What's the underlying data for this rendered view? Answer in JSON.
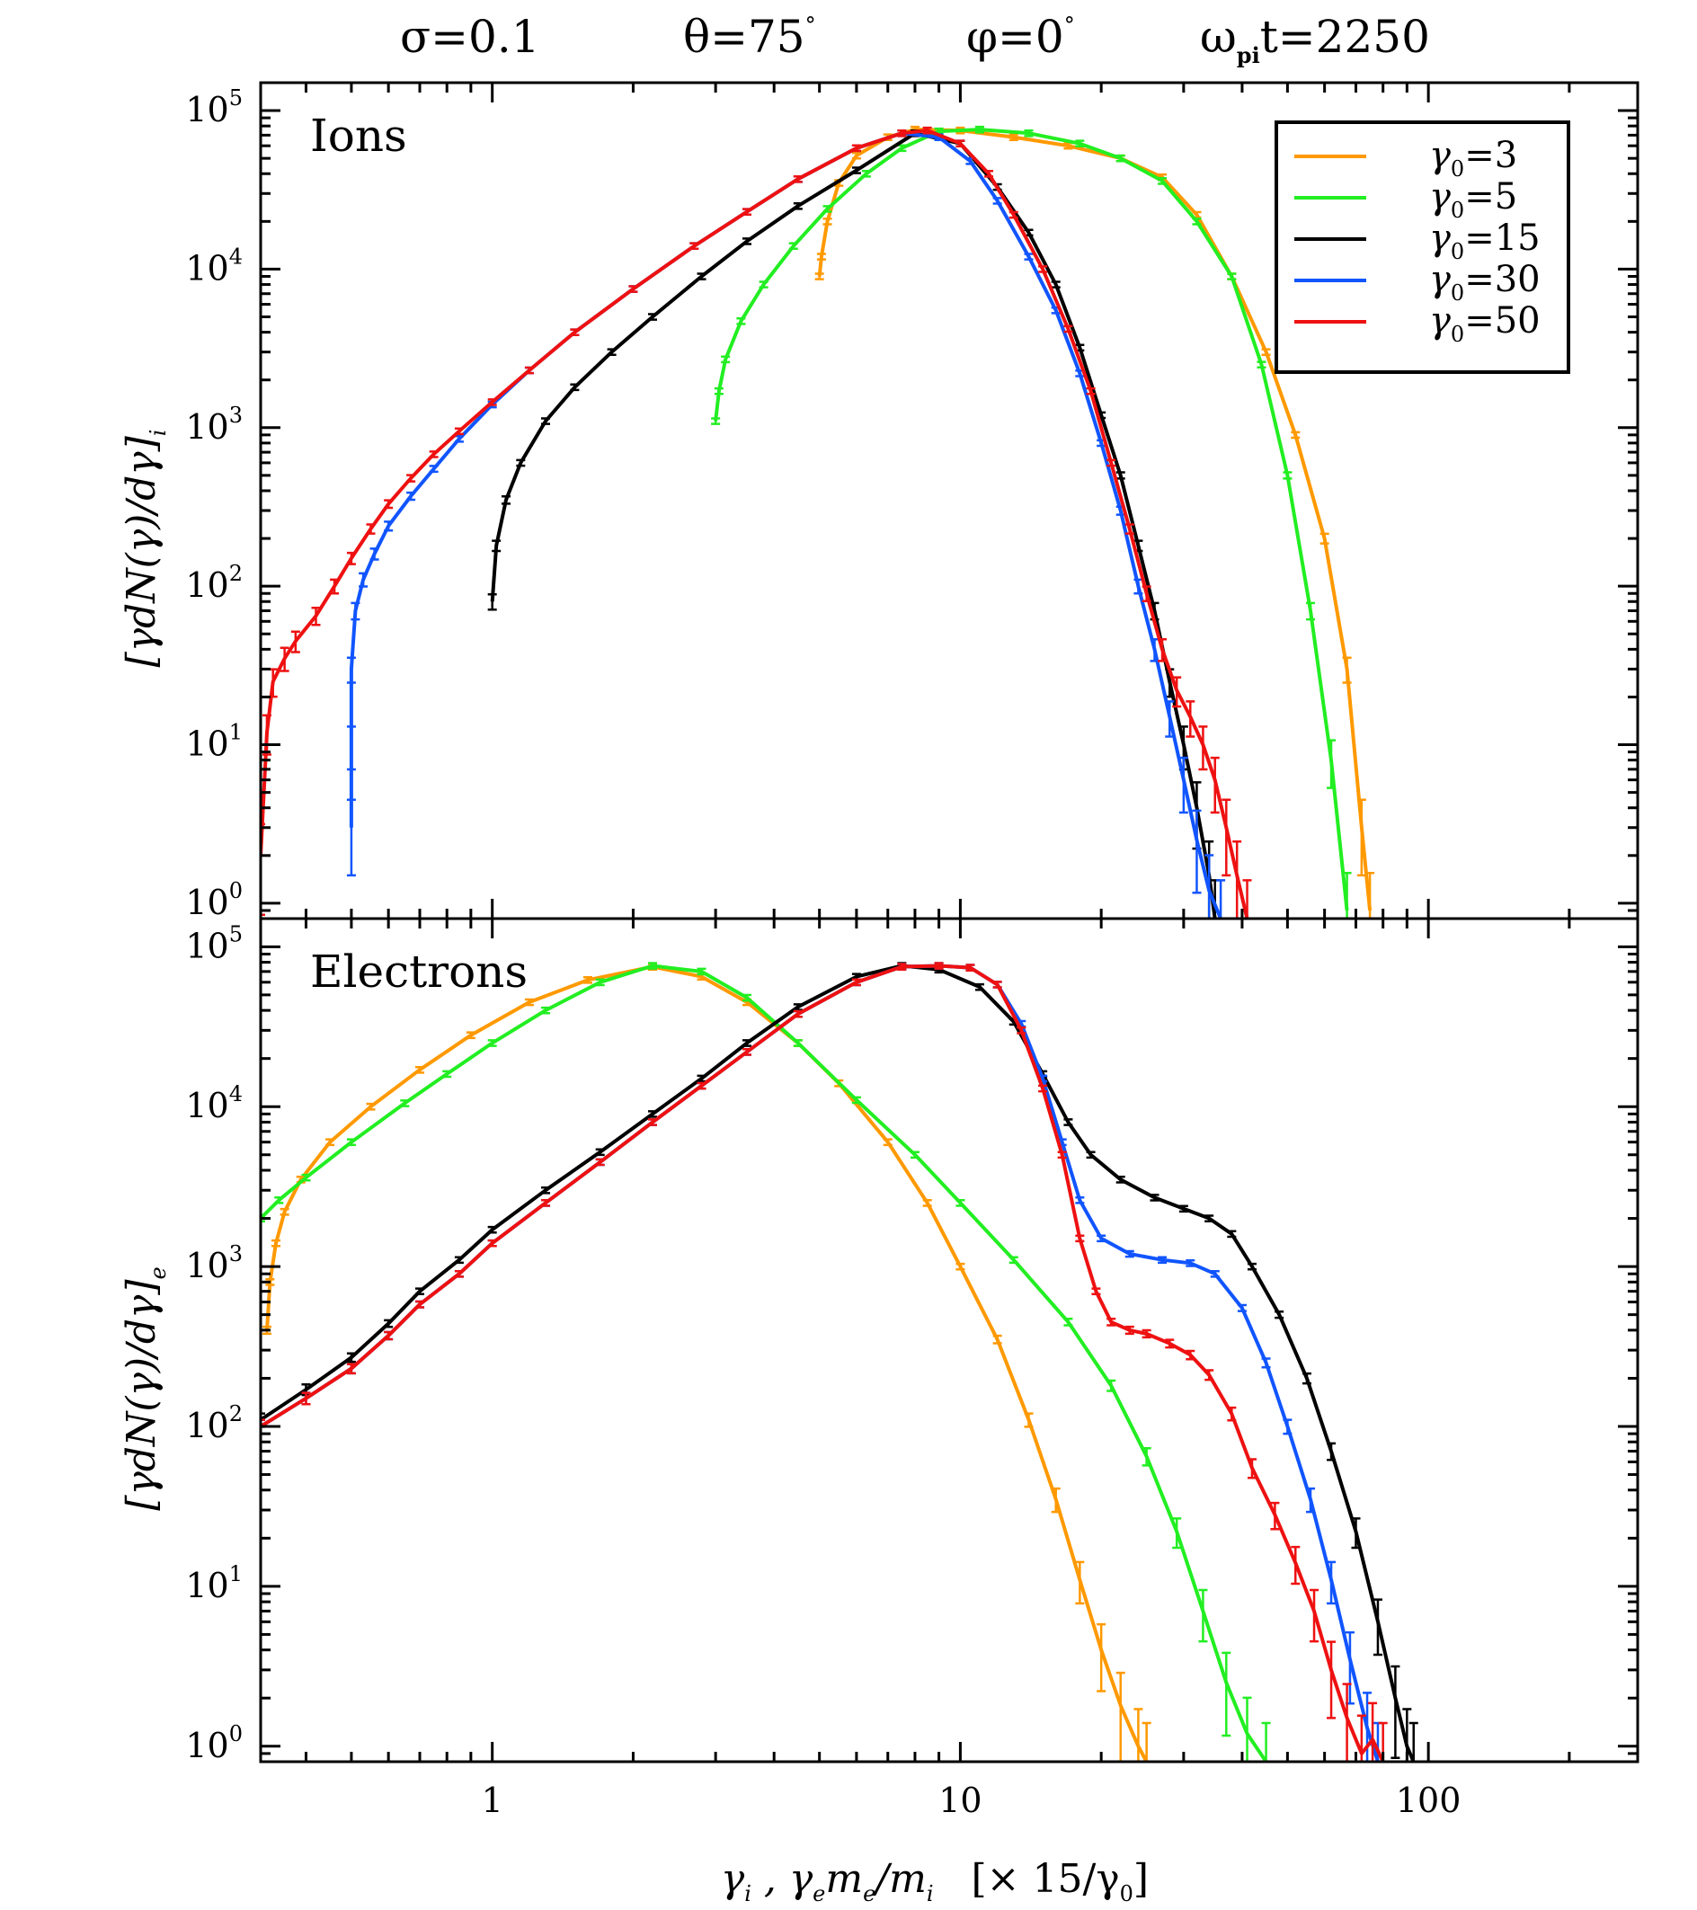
{
  "chart_data": [
    {
      "type": "line",
      "panel": "top",
      "label": "Ions",
      "xscale": "log",
      "yscale": "log",
      "xlim": [
        0.32,
        280
      ],
      "ylim": [
        0.8,
        150000
      ],
      "yticks": [
        {
          "base": "10",
          "exp": "0",
          "value": 1
        },
        {
          "base": "10",
          "exp": "1",
          "value": 10
        },
        {
          "base": "10",
          "exp": "2",
          "value": 100
        },
        {
          "base": "10",
          "exp": "3",
          "value": 1000
        },
        {
          "base": "10",
          "exp": "4",
          "value": 10000
        },
        {
          "base": "10",
          "exp": "5",
          "value": 100000
        }
      ],
      "ylabel": "[γdN(γ)/dγ]",
      "ylabel_sub": "i",
      "series": [
        {
          "name": "γ0=3",
          "color": "#ff9900",
          "x": [
            5,
            5.05,
            5.2,
            5.5,
            6,
            7,
            8,
            10,
            13,
            17,
            22,
            27,
            32,
            38,
            45,
            52,
            60,
            67,
            72,
            75
          ],
          "y": [
            9000,
            12000,
            20000,
            35000,
            52000,
            68000,
            76000,
            75000,
            68000,
            60000,
            50000,
            38000,
            22000,
            9000,
            3000,
            900,
            200,
            30,
            3,
            0.9
          ]
        },
        {
          "name": "γ0=5",
          "color": "#22ee22",
          "x": [
            3,
            3.05,
            3.15,
            3.4,
            3.8,
            4.4,
            5.2,
            6.3,
            7.5,
            9,
            11,
            14,
            18,
            22,
            27,
            32,
            38,
            44,
            50,
            56,
            62,
            67
          ],
          "y": [
            1100,
            1700,
            2700,
            4700,
            8000,
            14000,
            24000,
            40000,
            58000,
            74000,
            76000,
            72000,
            62000,
            50000,
            36000,
            20000,
            9000,
            2500,
            500,
            70,
            8,
            0.9
          ]
        },
        {
          "name": "γ0=15",
          "color": "#000000",
          "x": [
            1,
            1.02,
            1.07,
            1.15,
            1.3,
            1.5,
            1.8,
            2.2,
            2.8,
            3.5,
            4.5,
            6,
            8,
            10,
            12,
            14,
            16,
            18,
            20,
            22,
            24,
            26,
            28,
            30,
            32,
            34,
            35
          ],
          "y": [
            80,
            180,
            350,
            600,
            1100,
            1800,
            3000,
            5000,
            9000,
            15000,
            25000,
            42000,
            72000,
            62000,
            33000,
            17000,
            8000,
            3200,
            1200,
            500,
            180,
            70,
            25,
            10,
            4,
            1.5,
            0.8
          ]
        },
        {
          "name": "γ0=30",
          "color": "#1155ff",
          "x": [
            0.5,
            0.5,
            0.5,
            0.51,
            0.53,
            0.56,
            0.6,
            0.67,
            0.75,
            0.85,
            1,
            1.2,
            1.5,
            2,
            2.7,
            3.5,
            4.5,
            6,
            7.5,
            9,
            10.5,
            12,
            14,
            16,
            18,
            20,
            22,
            24,
            26,
            28,
            30,
            32,
            34,
            36
          ],
          "y": [
            3,
            10,
            30,
            70,
            110,
            160,
            240,
            370,
            550,
            850,
            1400,
            2300,
            4000,
            7500,
            14000,
            23000,
            37000,
            58000,
            72000,
            68000,
            48000,
            27000,
            12000,
            5500,
            2200,
            800,
            300,
            100,
            40,
            15,
            6,
            2.5,
            1.2,
            0.8
          ]
        },
        {
          "name": "γ0=50",
          "color": "#ee1111",
          "x": [
            0.32,
            0.33,
            0.34,
            0.36,
            0.38,
            0.42,
            0.46,
            0.5,
            0.55,
            0.6,
            0.67,
            0.75,
            0.85,
            1,
            1.2,
            1.5,
            2,
            2.7,
            3.5,
            4.5,
            6,
            7.5,
            8.5,
            10,
            11.5,
            13,
            15,
            17,
            19,
            21,
            23,
            25,
            27,
            29,
            31,
            33,
            35,
            37,
            39,
            41
          ],
          "y": [
            2,
            12,
            25,
            35,
            45,
            65,
            100,
            150,
            230,
            330,
            480,
            680,
            950,
            1450,
            2300,
            4000,
            7500,
            14000,
            23000,
            37000,
            58000,
            72000,
            75000,
            62000,
            40000,
            22000,
            10000,
            4200,
            1700,
            600,
            230,
            90,
            40,
            22,
            15,
            10,
            6,
            3,
            1.5,
            0.8
          ]
        }
      ]
    },
    {
      "type": "line",
      "panel": "bottom",
      "label": "Electrons",
      "xscale": "log",
      "yscale": "log",
      "xlim": [
        0.32,
        280
      ],
      "ylim": [
        0.8,
        150000
      ],
      "xticks": [
        {
          "label": "1",
          "value": 1
        },
        {
          "label": "10",
          "value": 10
        },
        {
          "label": "100",
          "value": 100
        }
      ],
      "yticks": [
        {
          "base": "10",
          "exp": "0",
          "value": 1
        },
        {
          "base": "10",
          "exp": "1",
          "value": 10
        },
        {
          "base": "10",
          "exp": "2",
          "value": 100
        },
        {
          "base": "10",
          "exp": "3",
          "value": 1000
        },
        {
          "base": "10",
          "exp": "4",
          "value": 10000
        },
        {
          "base": "10",
          "exp": "5",
          "value": 100000
        }
      ],
      "ylabel": "[γdN(γ)/dγ]",
      "ylabel_sub": "e",
      "series": [
        {
          "name": "γ0=3",
          "color": "#ff9900",
          "x": [
            0.33,
            0.335,
            0.345,
            0.36,
            0.39,
            0.45,
            0.55,
            0.7,
            0.9,
            1.2,
            1.6,
            2.2,
            2.8,
            3.5,
            4.5,
            5.5,
            7,
            8.5,
            10,
            12,
            14,
            16,
            18,
            20,
            22,
            24,
            25
          ],
          "y": [
            400,
            800,
            1400,
            2200,
            3500,
            6000,
            10000,
            17000,
            28000,
            45000,
            62000,
            75000,
            65000,
            45000,
            25000,
            14000,
            6000,
            2500,
            1000,
            350,
            110,
            35,
            11,
            4,
            1.8,
            1,
            0.8
          ]
        },
        {
          "name": "γ0=5",
          "color": "#22ee22",
          "x": [
            0.32,
            0.35,
            0.4,
            0.5,
            0.65,
            0.8,
            1,
            1.3,
            1.7,
            2.2,
            2.8,
            3.5,
            4.5,
            6,
            8,
            10,
            13,
            17,
            21,
            25,
            29,
            33,
            37,
            41,
            45
          ],
          "y": [
            2000,
            2600,
            3600,
            6000,
            10500,
            16000,
            25000,
            40000,
            60000,
            76000,
            70000,
            48000,
            25000,
            11000,
            5000,
            2500,
            1100,
            450,
            180,
            65,
            22,
            7,
            2.5,
            1.2,
            0.8
          ]
        },
        {
          "name": "γ0=15",
          "color": "#000000",
          "x": [
            0.32,
            0.4,
            0.5,
            0.6,
            0.7,
            0.85,
            1,
            1.3,
            1.7,
            2.2,
            2.8,
            3.5,
            4.5,
            6,
            7.5,
            9,
            11,
            13,
            15,
            17,
            19,
            22,
            26,
            30,
            34,
            38,
            42,
            48,
            55,
            62,
            70,
            78,
            85,
            90,
            93
          ],
          "y": [
            110,
            170,
            270,
            440,
            700,
            1100,
            1700,
            3000,
            5200,
            9000,
            15000,
            25000,
            42000,
            65000,
            76000,
            72000,
            56000,
            34000,
            16000,
            8000,
            5000,
            3500,
            2700,
            2300,
            2000,
            1600,
            1000,
            500,
            200,
            70,
            22,
            6,
            2,
            1,
            0.8
          ]
        },
        {
          "name": "γ0=30",
          "color": "#1155ff",
          "x": [
            0.32,
            0.4,
            0.5,
            0.6,
            0.7,
            0.85,
            1,
            1.3,
            1.7,
            2.2,
            2.8,
            3.5,
            4.5,
            6,
            7.5,
            9,
            10.5,
            12,
            13.5,
            15,
            16.5,
            18,
            20,
            23,
            27,
            31,
            35,
            40,
            45,
            50,
            56,
            62,
            68,
            74,
            78
          ],
          "y": [
            100,
            150,
            230,
            370,
            580,
            900,
            1400,
            2500,
            4500,
            8000,
            13500,
            22000,
            38000,
            60000,
            75000,
            76000,
            74000,
            58000,
            33000,
            15000,
            6000,
            2600,
            1500,
            1200,
            1100,
            1050,
            900,
            550,
            250,
            100,
            35,
            11,
            3.5,
            1.3,
            0.8
          ]
        },
        {
          "name": "γ0=50",
          "color": "#ee1111",
          "x": [
            0.32,
            0.4,
            0.5,
            0.6,
            0.7,
            0.85,
            1,
            1.3,
            1.7,
            2.2,
            2.8,
            3.5,
            4.5,
            6,
            7.5,
            9,
            10.5,
            12,
            13.5,
            15,
            16.5,
            18,
            19.5,
            21,
            23,
            25,
            28,
            31,
            34,
            38,
            42,
            47,
            52,
            57,
            62,
            67,
            72,
            76,
            80
          ],
          "y": [
            100,
            150,
            230,
            370,
            580,
            900,
            1400,
            2500,
            4500,
            8000,
            13500,
            22000,
            38000,
            60000,
            75000,
            76000,
            74000,
            58000,
            30000,
            13000,
            5000,
            1500,
            700,
            450,
            400,
            380,
            330,
            280,
            210,
            120,
            55,
            28,
            14,
            7,
            3,
            1.5,
            0.9,
            1.1,
            0.8
          ]
        }
      ]
    }
  ],
  "title": {
    "sigma": "σ=0.1",
    "theta": "θ=75",
    "theta_deg": "°",
    "phi": "φ=0",
    "phi_deg": "°",
    "omega": "ω",
    "omega_sub": "pi",
    "omega_rest": "t=2250"
  },
  "xlabel": {
    "part1": "γ",
    "part1_sub": "i",
    "part2": " , γ",
    "part2_sub": "e",
    "part3": "m",
    "part3_sub": "e",
    "part4": "/m",
    "part4_sub": "i",
    "part5": "   [× 15/γ",
    "part5_sub": "0",
    "part6": "]"
  },
  "legend": [
    {
      "sym": "γ",
      "sub": "0",
      "rest": "=3",
      "color": "#ff9900"
    },
    {
      "sym": "γ",
      "sub": "0",
      "rest": "=5",
      "color": "#22ee22"
    },
    {
      "sym": "γ",
      "sub": "0",
      "rest": "=15",
      "color": "#000000"
    },
    {
      "sym": "γ",
      "sub": "0",
      "rest": "=30",
      "color": "#1155ff"
    },
    {
      "sym": "γ",
      "sub": "0",
      "rest": "=50",
      "color": "#ee1111"
    }
  ]
}
